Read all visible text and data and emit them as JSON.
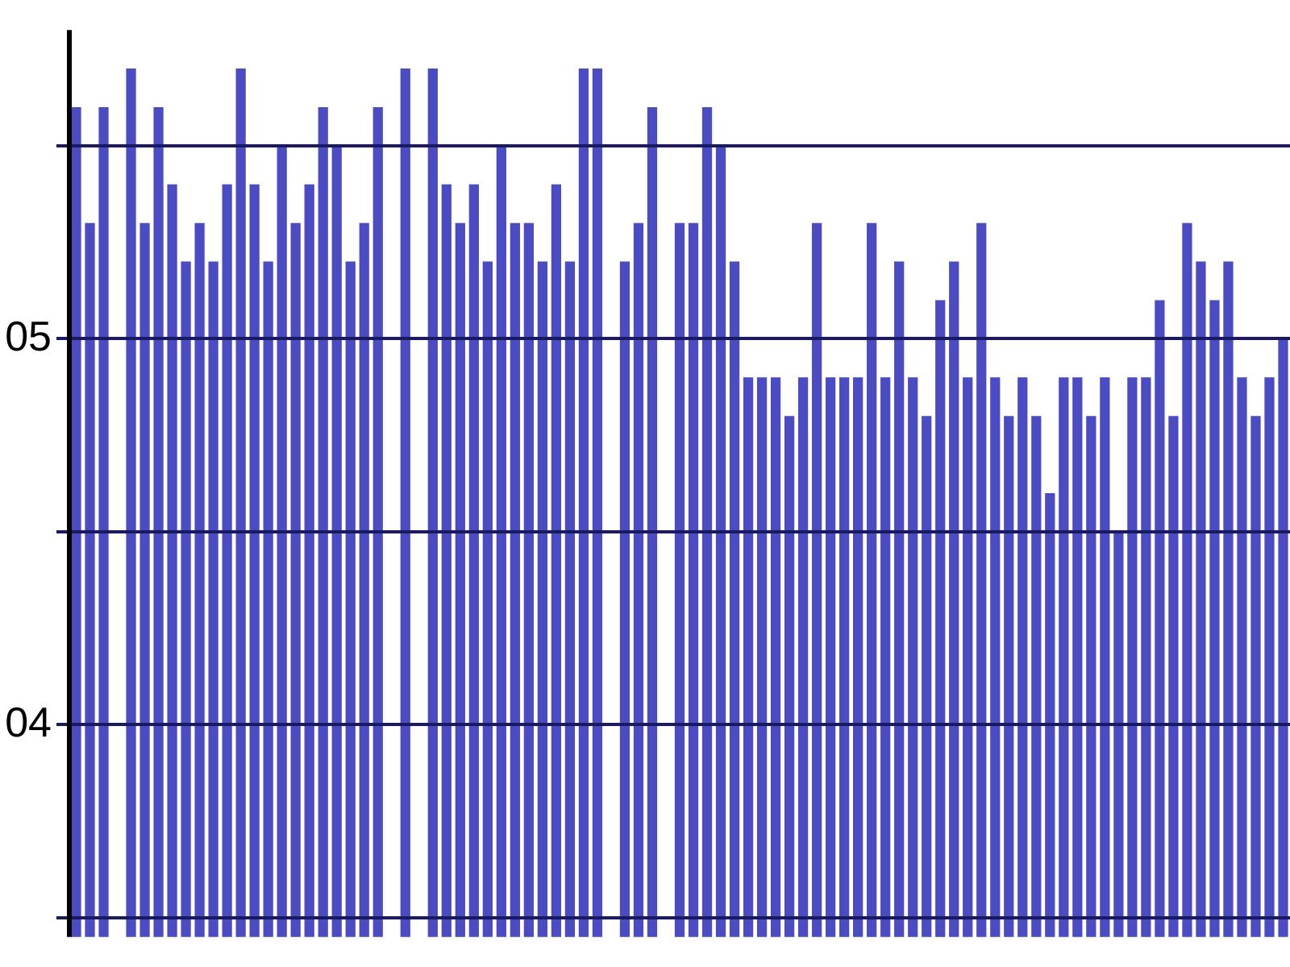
{
  "chart_data": {
    "type": "bar",
    "categories": [
      null,
      null,
      null,
      null,
      null,
      null,
      null,
      null,
      null,
      null,
      null,
      null,
      null,
      null,
      null,
      null,
      null,
      null,
      null,
      null,
      null,
      null,
      null,
      null,
      null,
      null,
      null,
      null,
      null,
      null,
      null,
      null,
      null,
      null,
      null,
      null,
      null,
      null,
      null,
      null,
      null,
      null,
      null,
      null,
      null,
      null,
      null,
      null,
      null,
      null,
      null,
      null,
      null,
      null,
      null,
      null,
      null,
      null,
      null,
      null,
      null,
      null,
      null,
      null,
      null,
      null,
      null,
      null,
      null,
      null,
      null,
      null,
      null,
      null,
      null,
      null,
      null,
      null,
      null,
      null,
      null,
      null,
      null,
      null,
      null,
      null,
      null,
      null,
      null
    ],
    "values": [
      5.6,
      5.3,
      5.6,
      null,
      5.7,
      5.3,
      5.6,
      5.4,
      5.2,
      5.3,
      5.2,
      5.4,
      5.7,
      5.4,
      5.2,
      5.5,
      5.3,
      5.4,
      5.6,
      5.5,
      5.2,
      5.3,
      5.6,
      null,
      5.7,
      null,
      5.7,
      5.4,
      5.3,
      5.4,
      5.2,
      5.5,
      5.3,
      5.3,
      5.2,
      5.4,
      5.2,
      5.7,
      5.7,
      null,
      5.2,
      5.3,
      5.6,
      null,
      5.3,
      5.3,
      5.6,
      5.5,
      5.2,
      4.9,
      4.9,
      4.9,
      4.8,
      4.9,
      5.3,
      4.9,
      4.9,
      4.9,
      5.3,
      4.9,
      5.2,
      4.9,
      4.8,
      5.1,
      5.2,
      4.9,
      5.3,
      4.9,
      4.8,
      4.9,
      4.8,
      4.6,
      4.9,
      4.9,
      4.8,
      4.9,
      4.5,
      4.9,
      4.9,
      5.1,
      4.8,
      5.3,
      5.2,
      5.1,
      5.2,
      4.9,
      4.8,
      4.9,
      5.0
    ],
    "color": "#4b4bc4",
    "ylim": [
      3.45,
      5.8
    ],
    "yticks": [
      {
        "value": 3.5,
        "label": null
      },
      {
        "value": 4,
        "label": "04"
      },
      {
        "value": 4.5,
        "label": null
      },
      {
        "value": 5,
        "label": "05"
      },
      {
        "value": 5.5,
        "label": null
      }
    ],
    "grid": "y",
    "tick_labels": "y"
  }
}
